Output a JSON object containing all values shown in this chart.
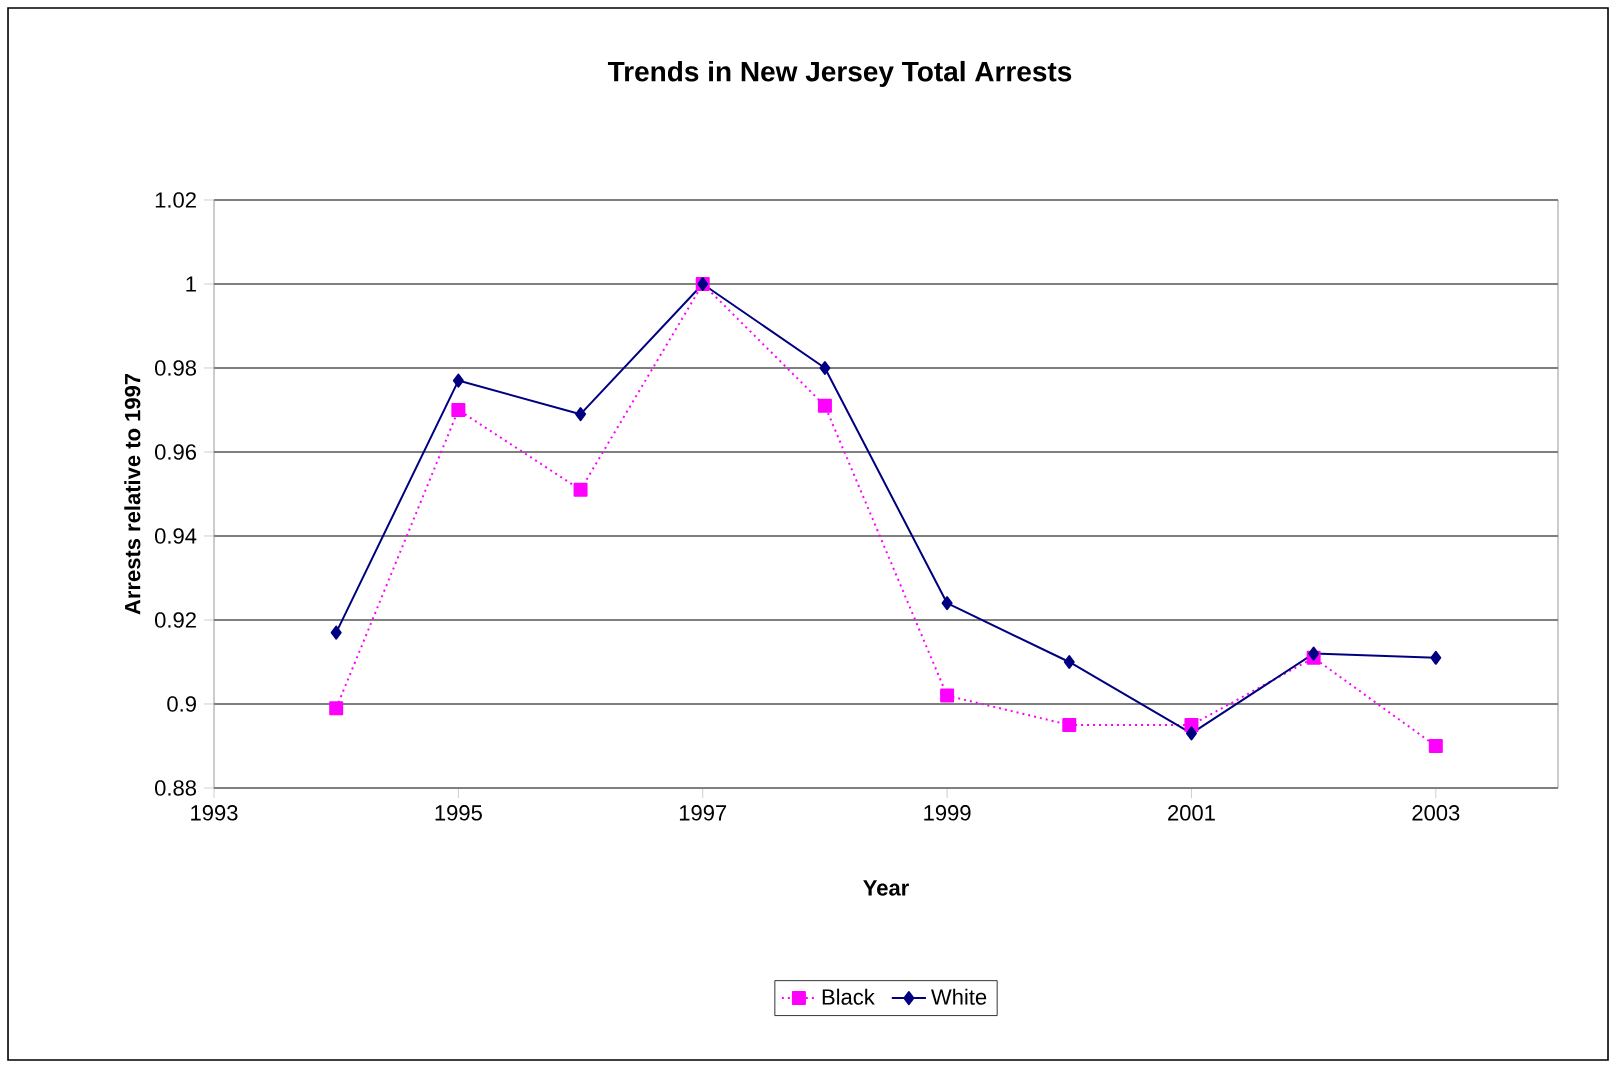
{
  "chart_data": {
    "type": "line",
    "title": "Trends in New Jersey Total Arrests",
    "xlabel": "Year",
    "ylabel": "Arrests relative to 1997",
    "x": [
      1994,
      1995,
      1996,
      1997,
      1998,
      1999,
      2000,
      2001,
      2002,
      2003
    ],
    "series": [
      {
        "name": "Black",
        "color": "#ff00ff",
        "marker": "square",
        "line_style": "dotted",
        "values": [
          0.899,
          0.97,
          0.951,
          1.0,
          0.971,
          0.902,
          0.895,
          0.895,
          0.911,
          0.89
        ]
      },
      {
        "name": "White",
        "color": "#000080",
        "marker": "diamond",
        "line_style": "solid",
        "values": [
          0.917,
          0.977,
          0.969,
          1.0,
          0.98,
          0.924,
          0.91,
          0.893,
          0.912,
          0.911
        ]
      }
    ],
    "xlim": [
      1993,
      2004
    ],
    "xticks": [
      1993,
      1995,
      1997,
      1999,
      2001,
      2003
    ],
    "ylim": [
      0.88,
      1.02
    ],
    "yticks": [
      0.88,
      0.9,
      0.92,
      0.94,
      0.96,
      0.98,
      1,
      1.02
    ],
    "grid": "y",
    "legend": "bottom"
  }
}
